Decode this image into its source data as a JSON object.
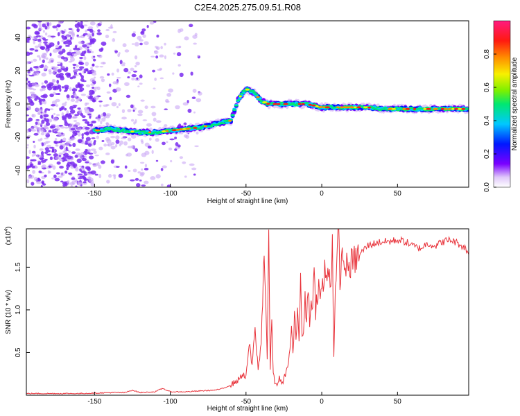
{
  "title": "C2E4.2025.275.09.51.R08",
  "colors": {
    "line": "#e8323a",
    "scatter": "#7a2cf0",
    "scatter_light": "#c9a6f5",
    "colormap": [
      "#ffffff",
      "#e0c8fa",
      "#7a00ff",
      "#0018ff",
      "#00c8ff",
      "#00e870",
      "#7cf000",
      "#f8f000",
      "#ff8c00",
      "#ff1a10",
      "#ff1a80"
    ]
  },
  "chart_data": [
    {
      "type": "heatmap",
      "title": "C2E4.2025.275.09.51.R08",
      "xlabel": "Height of straight line (km)",
      "ylabel": "Frequency (Hz)",
      "xlim": [
        -195,
        97
      ],
      "ylim": [
        -50,
        50
      ],
      "xticks": [
        -150,
        -100,
        -50,
        0,
        50
      ],
      "xtick_labels": [
        "-150",
        "-100",
        "-50",
        "0",
        "50"
      ],
      "yticks": [
        -40,
        -20,
        0,
        20,
        40
      ],
      "ytick_labels": [
        "-40",
        "-20",
        "0",
        "20",
        "40"
      ],
      "ridge": {
        "x": [
          -150,
          -140,
          -130,
          -120,
          -110,
          -100,
          -90,
          -80,
          -70,
          -60,
          -55,
          -50,
          -45,
          -40,
          -35,
          -30,
          -20,
          -10,
          0,
          10,
          20,
          30,
          40,
          50,
          60,
          70,
          80,
          90,
          97
        ],
        "y": [
          -16,
          -15,
          -16,
          -17,
          -17,
          -16,
          -15,
          -14,
          -12,
          -10,
          3,
          9,
          7,
          2,
          0,
          0,
          0,
          0,
          -2,
          -2,
          -2,
          -2,
          -3,
          -3,
          -3,
          -3,
          -3,
          -3,
          -3
        ]
      },
      "colorbar": {
        "label": "Normalized spectral amplitude",
        "range": [
          0,
          1
        ],
        "ticks": [
          0.0,
          0.2,
          0.4,
          0.6,
          0.8
        ],
        "tick_labels": [
          "0.0",
          "0.2",
          "0.4",
          "0.6",
          "0.8"
        ]
      }
    },
    {
      "type": "line",
      "xlabel": "Height of straight line (km)",
      "ylabel": "SNR (10 * v/v)",
      "y_multiplier": "(x10",
      "y_exponent": "4",
      "y_multiplier_close": ")",
      "xlim": [
        -195,
        97
      ],
      "ylim": [
        0,
        1.95
      ],
      "xticks": [
        -150,
        -100,
        -50,
        0,
        50
      ],
      "xtick_labels": [
        "-150",
        "-100",
        "-50",
        "0",
        "50"
      ],
      "yticks": [
        0.5,
        1.0,
        1.5
      ],
      "ytick_labels": [
        "0.5",
        "1.0",
        "1.5"
      ],
      "series": [
        {
          "name": "SNR",
          "x": [
            -195,
            -180,
            -160,
            -140,
            -130,
            -125,
            -120,
            -110,
            -105,
            -100,
            -90,
            -80,
            -70,
            -65,
            -60,
            -55,
            -52,
            -50,
            -48,
            -46,
            -44,
            -42,
            -40,
            -38,
            -36,
            -35,
            -34,
            -33,
            -32,
            -31,
            -30,
            -28,
            -26,
            -24,
            -22,
            -20,
            -19,
            -18,
            -17,
            -16,
            -15,
            -14,
            -13,
            -12,
            -11,
            -10,
            -9,
            -8,
            -7,
            -6,
            -5,
            -4,
            -3,
            -2,
            -1,
            0,
            1,
            2,
            3,
            4,
            5,
            6,
            7,
            8,
            9,
            10,
            11,
            12,
            13,
            14,
            15,
            16,
            17,
            18,
            20,
            25,
            30,
            35,
            40,
            45,
            50,
            55,
            60,
            65,
            70,
            75,
            80,
            85,
            90,
            95,
            97
          ],
          "y": [
            0.02,
            0.02,
            0.02,
            0.03,
            0.03,
            0.06,
            0.03,
            0.04,
            0.08,
            0.04,
            0.04,
            0.05,
            0.06,
            0.08,
            0.12,
            0.18,
            0.25,
            0.2,
            0.6,
            0.35,
            0.75,
            0.3,
            0.6,
            1.75,
            0.45,
            1.85,
            0.3,
            0.9,
            0.25,
            0.15,
            0.12,
            0.2,
            0.12,
            0.25,
            0.35,
            0.8,
            0.45,
            0.9,
            0.7,
            1.05,
            0.65,
            1.3,
            0.7,
            0.75,
            1.1,
            0.9,
            1.35,
            0.8,
            1.1,
            1.15,
            1.4,
            1.0,
            1.2,
            1.3,
            1.05,
            1.35,
            1.2,
            1.5,
            1.3,
            1.45,
            1.55,
            1.25,
            1.8,
            0.5,
            1.2,
            1.45,
            1.95,
            1.4,
            1.5,
            1.7,
            1.45,
            1.55,
            1.45,
            1.52,
            1.55,
            1.65,
            1.75,
            1.78,
            1.8,
            1.8,
            1.82,
            1.8,
            1.75,
            1.72,
            1.78,
            1.75,
            1.8,
            1.82,
            1.78,
            1.72,
            1.65
          ]
        }
      ]
    }
  ]
}
